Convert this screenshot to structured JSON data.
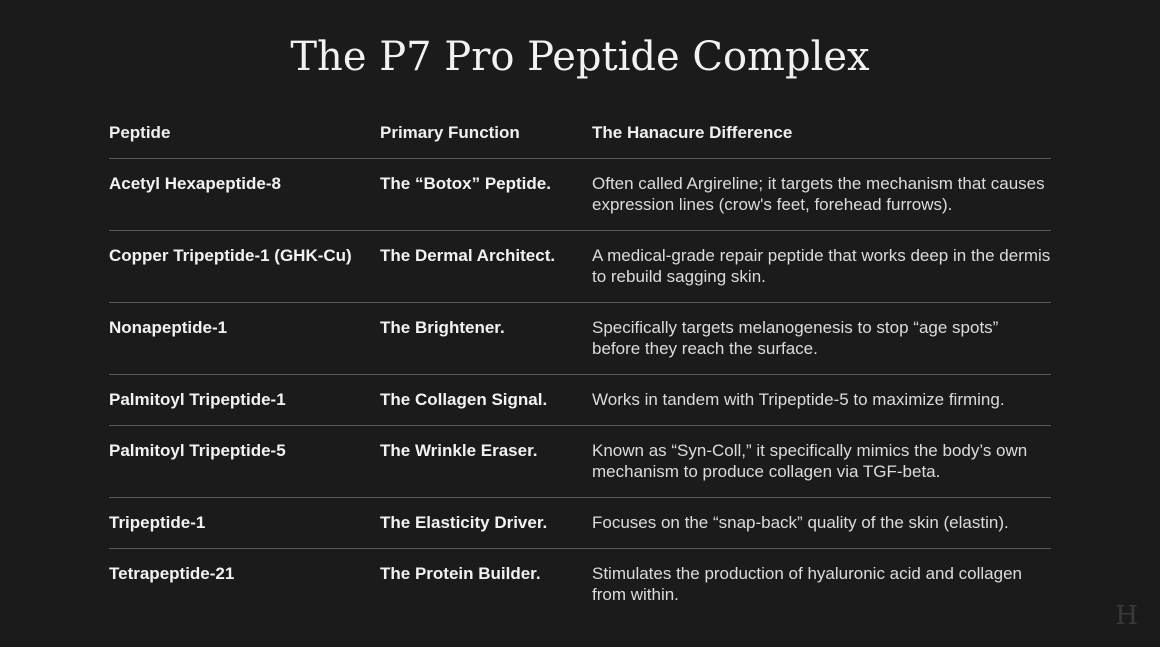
{
  "title": "The P7 Pro Peptide Complex",
  "table": {
    "headers": [
      "Peptide",
      "Primary Function",
      "The Hanacure Difference"
    ],
    "rows": [
      [
        "Acetyl Hexapeptide-8",
        "The “Botox” Peptide.",
        "Often called Argireline; it targets the mechanism that causes expression lines (crow's feet, forehead furrows)."
      ],
      [
        "Copper Tripeptide-1 (GHK-Cu)",
        "The Dermal Architect.",
        "A medical-grade repair peptide that works deep in the dermis to rebuild sagging skin."
      ],
      [
        "Nonapeptide-1",
        "The Brightener.",
        "Specifically targets melanogenesis to stop “age spots” before they reach the surface."
      ],
      [
        "Palmitoyl Tripeptide-1",
        "The Collagen Signal.",
        "Works in tandem with Tripeptide-5 to maximize firming."
      ],
      [
        "Palmitoyl Tripeptide-5",
        "The Wrinkle Eraser.",
        "Known as “Syn-Coll,” it specifically mimics the body’s own mechanism to produce collagen via TGF-beta."
      ],
      [
        "Tripeptide-1",
        "The Elasticity Driver.",
        "Focuses on the “snap-back” quality of the skin (elastin)."
      ],
      [
        "Tetrapeptide-21",
        "The Protein Builder.",
        "Stimulates the production of hyaluronic acid and collagen from within."
      ]
    ]
  },
  "logo": "H"
}
